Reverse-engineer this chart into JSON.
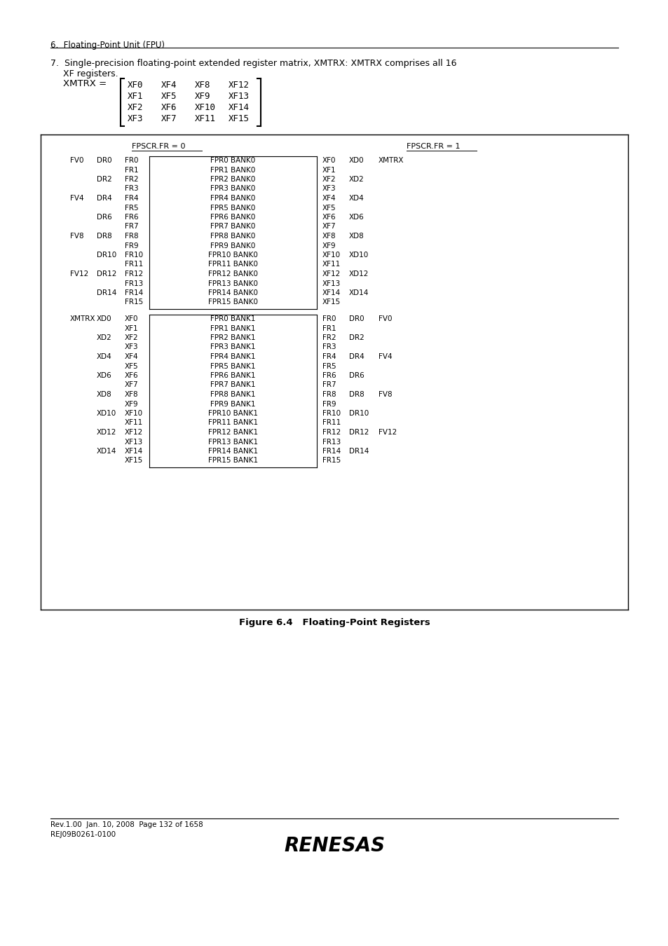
{
  "page_header": "6.  Floating-Point Unit (FPU)",
  "matrix_rows": [
    [
      "XF0",
      "XF4",
      "XF8",
      "XF12"
    ],
    [
      "XF1",
      "XF5",
      "XF9",
      "XF13"
    ],
    [
      "XF2",
      "XF6",
      "XF10",
      "XF14"
    ],
    [
      "XF3",
      "XF7",
      "XF11",
      "XF15"
    ]
  ],
  "fpscr_fr0_label": "FPSCR.FR = 0",
  "fpscr_fr1_label": "FPSCR.FR = 1",
  "bank0_rows": [
    {
      "fv": "FV0",
      "dr": "DR0",
      "fr": "FR0",
      "fpr": "FPR0 BANK0",
      "xf": "XF0",
      "xd": "XD0",
      "xmtrx": "XMTRX"
    },
    {
      "fv": "",
      "dr": "",
      "fr": "FR1",
      "fpr": "FPR1 BANK0",
      "xf": "XF1",
      "xd": "",
      "xmtrx": ""
    },
    {
      "fv": "",
      "dr": "DR2",
      "fr": "FR2",
      "fpr": "FPR2 BANK0",
      "xf": "XF2",
      "xd": "XD2",
      "xmtrx": ""
    },
    {
      "fv": "",
      "dr": "",
      "fr": "FR3",
      "fpr": "FPR3 BANK0",
      "xf": "XF3",
      "xd": "",
      "xmtrx": ""
    },
    {
      "fv": "FV4",
      "dr": "DR4",
      "fr": "FR4",
      "fpr": "FPR4 BANK0",
      "xf": "XF4",
      "xd": "XD4",
      "xmtrx": ""
    },
    {
      "fv": "",
      "dr": "",
      "fr": "FR5",
      "fpr": "FPR5 BANK0",
      "xf": "XF5",
      "xd": "",
      "xmtrx": ""
    },
    {
      "fv": "",
      "dr": "DR6",
      "fr": "FR6",
      "fpr": "FPR6 BANK0",
      "xf": "XF6",
      "xd": "XD6",
      "xmtrx": ""
    },
    {
      "fv": "",
      "dr": "",
      "fr": "FR7",
      "fpr": "FPR7 BANK0",
      "xf": "XF7",
      "xd": "",
      "xmtrx": ""
    },
    {
      "fv": "FV8",
      "dr": "DR8",
      "fr": "FR8",
      "fpr": "FPR8 BANK0",
      "xf": "XF8",
      "xd": "XD8",
      "xmtrx": ""
    },
    {
      "fv": "",
      "dr": "",
      "fr": "FR9",
      "fpr": "FPR9 BANK0",
      "xf": "XF9",
      "xd": "",
      "xmtrx": ""
    },
    {
      "fv": "",
      "dr": "DR10",
      "fr": "FR10",
      "fpr": "FPR10 BANK0",
      "xf": "XF10",
      "xd": "XD10",
      "xmtrx": ""
    },
    {
      "fv": "",
      "dr": "",
      "fr": "FR11",
      "fpr": "FPR11 BANK0",
      "xf": "XF11",
      "xd": "",
      "xmtrx": ""
    },
    {
      "fv": "FV12",
      "dr": "DR12",
      "fr": "FR12",
      "fpr": "FPR12 BANK0",
      "xf": "XF12",
      "xd": "XD12",
      "xmtrx": ""
    },
    {
      "fv": "",
      "dr": "",
      "fr": "FR13",
      "fpr": "FPR13 BANK0",
      "xf": "XF13",
      "xd": "",
      "xmtrx": ""
    },
    {
      "fv": "",
      "dr": "DR14",
      "fr": "FR14",
      "fpr": "FPR14 BANK0",
      "xf": "XF14",
      "xd": "XD14",
      "xmtrx": ""
    },
    {
      "fv": "",
      "dr": "",
      "fr": "FR15",
      "fpr": "FPR15 BANK0",
      "xf": "XF15",
      "xd": "",
      "xmtrx": ""
    }
  ],
  "bank1_rows": [
    {
      "xmtrx": "XMTRX",
      "xd": "XD0",
      "xf": "XF0",
      "fpr": "FPR0 BANK1",
      "fr": "FR0",
      "dr": "DR0",
      "fv": "FV0"
    },
    {
      "xmtrx": "",
      "xd": "",
      "xf": "XF1",
      "fpr": "FPR1 BANK1",
      "fr": "FR1",
      "dr": "",
      "fv": ""
    },
    {
      "xmtrx": "",
      "xd": "XD2",
      "xf": "XF2",
      "fpr": "FPR2 BANK1",
      "fr": "FR2",
      "dr": "DR2",
      "fv": ""
    },
    {
      "xmtrx": "",
      "xd": "",
      "xf": "XF3",
      "fpr": "FPR3 BANK1",
      "fr": "FR3",
      "dr": "",
      "fv": ""
    },
    {
      "xmtrx": "",
      "xd": "XD4",
      "xf": "XF4",
      "fpr": "FPR4 BANK1",
      "fr": "FR4",
      "dr": "DR4",
      "fv": "FV4"
    },
    {
      "xmtrx": "",
      "xd": "",
      "xf": "XF5",
      "fpr": "FPR5 BANK1",
      "fr": "FR5",
      "dr": "",
      "fv": ""
    },
    {
      "xmtrx": "",
      "xd": "XD6",
      "xf": "XF6",
      "fpr": "FPR6 BANK1",
      "fr": "FR6",
      "dr": "DR6",
      "fv": ""
    },
    {
      "xmtrx": "",
      "xd": "",
      "xf": "XF7",
      "fpr": "FPR7 BANK1",
      "fr": "FR7",
      "dr": "",
      "fv": ""
    },
    {
      "xmtrx": "",
      "xd": "XD8",
      "xf": "XF8",
      "fpr": "FPR8 BANK1",
      "fr": "FR8",
      "dr": "DR8",
      "fv": "FV8"
    },
    {
      "xmtrx": "",
      "xd": "",
      "xf": "XF9",
      "fpr": "FPR9 BANK1",
      "fr": "FR9",
      "dr": "",
      "fv": ""
    },
    {
      "xmtrx": "",
      "xd": "XD10",
      "xf": "XF10",
      "fpr": "FPR10 BANK1",
      "fr": "FR10",
      "dr": "DR10",
      "fv": ""
    },
    {
      "xmtrx": "",
      "xd": "",
      "xf": "XF11",
      "fpr": "FPR11 BANK1",
      "fr": "FR11",
      "dr": "",
      "fv": ""
    },
    {
      "xmtrx": "",
      "xd": "XD12",
      "xf": "XF12",
      "fpr": "FPR12 BANK1",
      "fr": "FR12",
      "dr": "DR12",
      "fv": "FV12"
    },
    {
      "xmtrx": "",
      "xd": "",
      "xf": "XF13",
      "fpr": "FPR13 BANK1",
      "fr": "FR13",
      "dr": "",
      "fv": ""
    },
    {
      "xmtrx": "",
      "xd": "XD14",
      "xf": "XF14",
      "fpr": "FPR14 BANK1",
      "fr": "FR14",
      "dr": "DR14",
      "fv": ""
    },
    {
      "xmtrx": "",
      "xd": "",
      "xf": "XF15",
      "fpr": "FPR15 BANK1",
      "fr": "FR15",
      "dr": "",
      "fv": ""
    }
  ],
  "figure_caption": "Figure 6.4   Floating-Point Registers",
  "footer_line1": "Rev.1.00  Jan. 10, 2008  Page 132 of 1658",
  "footer_line2": "REJ09B0261-0100",
  "bg_color": "#ffffff"
}
